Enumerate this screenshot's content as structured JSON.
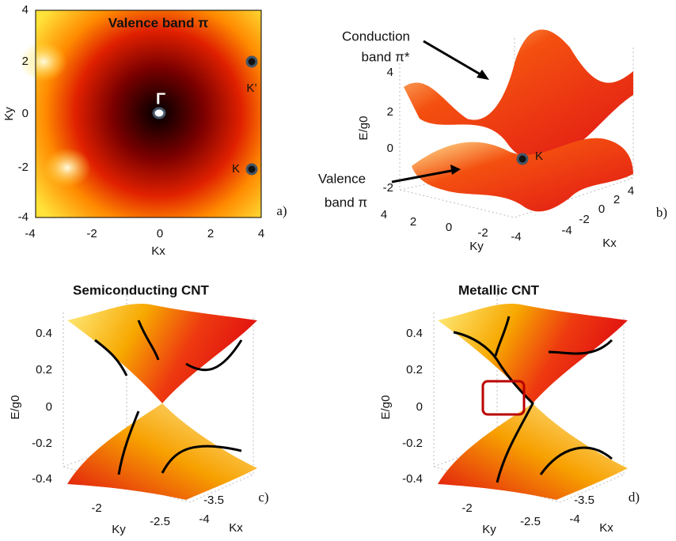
{
  "panel_a": {
    "title": "Valence band π",
    "x_label": "Kx",
    "y_label": "Ky",
    "x_ticks": [
      "-4",
      "-2",
      "0",
      "2",
      "4"
    ],
    "y_ticks": [
      "4",
      "2",
      "0",
      "-2",
      "-4"
    ],
    "points": [
      "Γ",
      "K’",
      "K"
    ],
    "tag": "a)"
  },
  "panel_b": {
    "annotations": [
      "Conduction",
      "band π*",
      "Valence",
      "band π"
    ],
    "point": "K",
    "z_label": "E/g0",
    "z_ticks": [
      "4",
      "2",
      "0",
      "-2"
    ],
    "y_label": "Ky",
    "y_ticks": [
      "4",
      "2",
      "0",
      "-2",
      "-4"
    ],
    "x_label": "Kx",
    "x_ticks": [
      "-4",
      "-2",
      "0",
      "2",
      "4"
    ],
    "tag": "b)"
  },
  "panel_c": {
    "title": "Semiconducting CNT",
    "z_label": "E/g0",
    "z_ticks": [
      "0.4",
      "0.2",
      "0",
      "-0.2",
      "-0.4"
    ],
    "y_label": "Ky",
    "y_ticks": [
      "-2",
      "-2.5"
    ],
    "x_label": "Kx",
    "x_ticks": [
      "-3.5",
      "-4"
    ],
    "tag": "c)"
  },
  "panel_d": {
    "title": "Metallic CNT",
    "z_label": "E/g0",
    "z_ticks": [
      "0.4",
      "0.2",
      "0",
      "-0.2",
      "-0.4"
    ],
    "y_label": "Ky",
    "y_ticks": [
      "-2",
      "-2.5"
    ],
    "x_label": "Kx",
    "x_ticks": [
      "-3.5",
      "-4"
    ],
    "tag": "d)"
  }
}
